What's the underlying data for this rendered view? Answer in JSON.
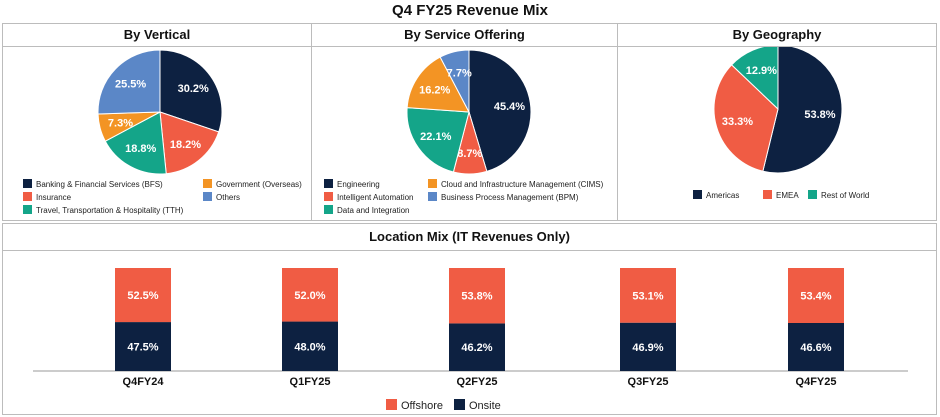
{
  "page_title": "Q4 FY25 Revenue Mix",
  "colors": {
    "navy": "#0d2141",
    "orange": "#f39424",
    "coral": "#f05c44",
    "teal": "#14a589",
    "blue": "#5b87c7"
  },
  "chart_data": [
    {
      "type": "pie",
      "title": "By Vertical",
      "slices": [
        {
          "label": "Banking & Financial Services (BFS)",
          "value": 30.2,
          "display": "30.2%",
          "color": "#0d2141"
        },
        {
          "label": "Insurance",
          "value": 18.2,
          "display": "18.2%",
          "color": "#f05c44"
        },
        {
          "label": "Travel, Transportation & Hospitality (TTH)",
          "value": 18.8,
          "display": "18.8%",
          "color": "#14a589"
        },
        {
          "label": "Government (Overseas)",
          "value": 7.3,
          "display": "7.3%",
          "color": "#f39424"
        },
        {
          "label": "Others",
          "value": 25.5,
          "display": "25.5%",
          "color": "#5b87c7"
        }
      ]
    },
    {
      "type": "pie",
      "title": "By Service Offering",
      "slices": [
        {
          "label": "Engineering",
          "value": 45.4,
          "display": "45.4%",
          "color": "#0d2141"
        },
        {
          "label": "Intelligent Automation",
          "value": 8.7,
          "display": "8.7%",
          "color": "#f05c44"
        },
        {
          "label": "Data and Integration",
          "value": 22.1,
          "display": "22.1%",
          "color": "#14a589"
        },
        {
          "label": "Cloud and Infrastructure Management (CIMS)",
          "value": 16.2,
          "display": "16.2%",
          "color": "#f39424"
        },
        {
          "label": "Business Process Management (BPM)",
          "value": 7.7,
          "display": "7.7%",
          "color": "#5b87c7"
        }
      ]
    },
    {
      "type": "pie",
      "title": "By Geography",
      "slices": [
        {
          "label": "Americas",
          "value": 53.8,
          "display": "53.8%",
          "color": "#0d2141"
        },
        {
          "label": "EMEA",
          "value": 33.3,
          "display": "33.3%",
          "color": "#f05c44"
        },
        {
          "label": "Rest of World",
          "value": 12.9,
          "display": "12.9%",
          "color": "#14a589"
        }
      ]
    },
    {
      "type": "bar",
      "stacked": true,
      "title": "Location Mix (IT Revenues Only)",
      "categories": [
        "Q4FY24",
        "Q1FY25",
        "Q2FY25",
        "Q3FY25",
        "Q4FY25"
      ],
      "series": [
        {
          "name": "Onsite",
          "color": "#0d2141",
          "values": [
            47.5,
            48.0,
            46.2,
            46.9,
            46.6
          ],
          "labels": [
            "47.5%",
            "48.0%",
            "46.2%",
            "46.9%",
            "46.6%"
          ]
        },
        {
          "name": "Offshore",
          "color": "#f05c44",
          "values": [
            52.5,
            52.0,
            53.8,
            53.1,
            53.4
          ],
          "labels": [
            "52.5%",
            "52.0%",
            "53.8%",
            "53.1%",
            "53.4%"
          ]
        }
      ],
      "legend_order": [
        "Offshore",
        "Onsite"
      ],
      "ylim": [
        0,
        100
      ]
    }
  ]
}
